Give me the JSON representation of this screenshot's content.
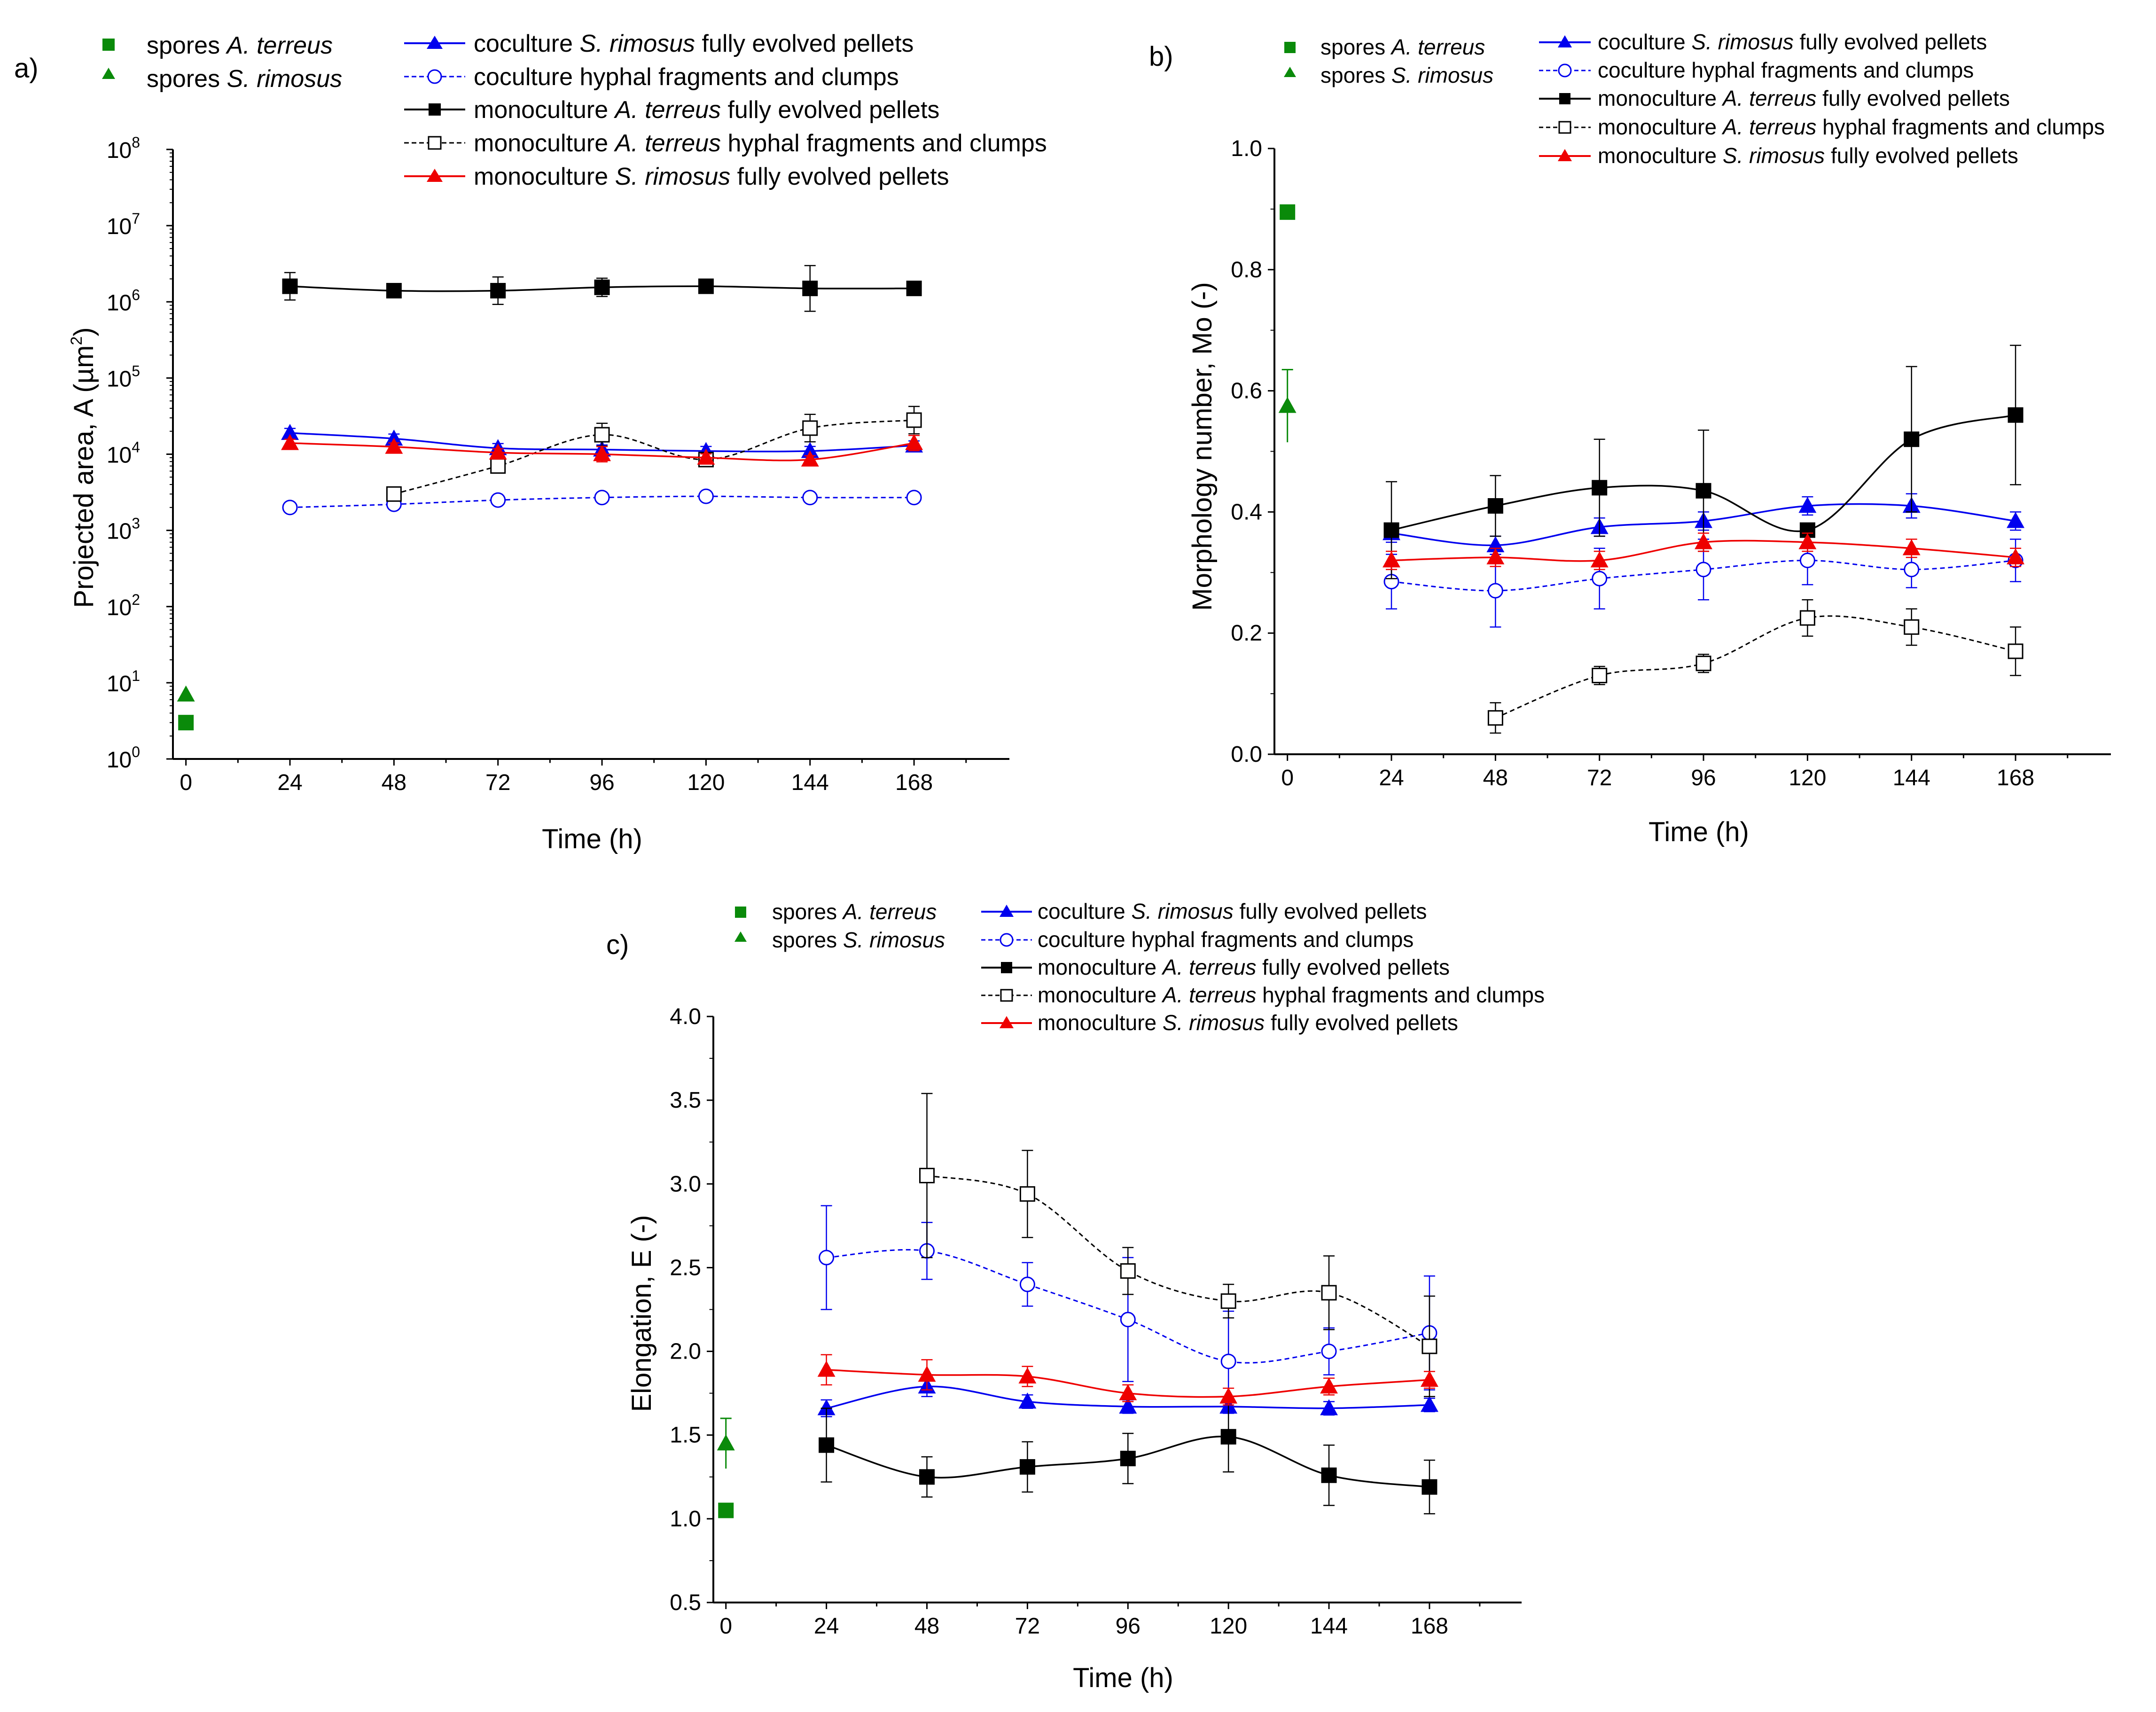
{
  "colors": {
    "black": "#000000",
    "blue": "#0000ee",
    "red": "#ee0000",
    "green": "#0a8a0a"
  },
  "legend": {
    "spores_a": {
      "pre": "spores ",
      "sp": "A. terreus",
      "post": ""
    },
    "spores_s": {
      "pre": "spores ",
      "sp": "S. rimosus",
      "post": ""
    },
    "co_s": {
      "pre": "coculture ",
      "sp": "S. rimosus",
      "post": " fully evolved pellets"
    },
    "co_h": {
      "pre": "coculture hyphal fragments and clumps",
      "sp": "",
      "post": ""
    },
    "mono_a": {
      "pre": "monoculture ",
      "sp": "A. terreus",
      "post": " fully evolved pellets"
    },
    "mono_ah": {
      "pre": "monoculture ",
      "sp": "A. terreus",
      "post": " hyphal fragments and clumps"
    },
    "mono_s": {
      "pre": "monoculture ",
      "sp": "S. rimosus",
      "post": " fully evolved pellets"
    }
  },
  "chart_data": [
    {
      "panel_label": "a)",
      "type": "scatter-line",
      "yscale": "log",
      "xlabel": "Time (h)",
      "ylabel": "Projected area, A (µm²)",
      "ylabel_main": "Projected area, A (µm",
      "ylabel_sup": "2",
      "ylabel_end": ")",
      "xlim": [
        -3,
        190
      ],
      "ylim_exp": [
        0,
        8
      ],
      "xticks": [
        0,
        24,
        48,
        72,
        96,
        120,
        144,
        168
      ],
      "yticks_exp": [
        0,
        1,
        2,
        3,
        4,
        5,
        6,
        7,
        8
      ],
      "x": [
        24,
        48,
        72,
        96,
        120,
        144,
        168
      ],
      "spores": {
        "a_terreus": 3,
        "s_rimosus": 7
      },
      "series": [
        {
          "key": "co_s",
          "values": [
            19000,
            16000,
            12000,
            11500,
            11000,
            11000,
            13000
          ],
          "err": [
            0.06,
            0.06,
            0.06,
            0.06,
            0.06,
            0.06,
            0.06
          ]
        },
        {
          "key": "co_h",
          "values": [
            2000,
            2200,
            2500,
            2700,
            2800,
            2700,
            2700
          ],
          "err": [
            0.03,
            0.03,
            0.03,
            0.03,
            0.03,
            0.03,
            0.03
          ]
        },
        {
          "key": "mono_a",
          "values": [
            1600000,
            1400000,
            1400000,
            1550000,
            1600000,
            1500000,
            1500000
          ],
          "err": [
            0.18,
            0.06,
            0.18,
            0.12,
            0.06,
            0.3,
            0.03
          ]
        },
        {
          "key": "mono_ah",
          "values": [
            null,
            3000,
            7000,
            18000,
            8500,
            22000,
            28000
          ],
          "err": [
            0,
            0.06,
            0.08,
            0.15,
            0.08,
            0.18,
            0.18
          ]
        },
        {
          "key": "mono_s",
          "values": [
            14000,
            12500,
            10500,
            10000,
            9000,
            8500,
            14000
          ],
          "err": [
            0.05,
            0.05,
            0.05,
            0.1,
            0.05,
            0.05,
            0.1
          ]
        }
      ]
    },
    {
      "panel_label": "b)",
      "type": "scatter-line",
      "yscale": "linear",
      "xlabel": "Time (h)",
      "ylabel": "Morphology number, Mo (-)",
      "xlim": [
        -3,
        190
      ],
      "ylim": [
        0,
        1.0
      ],
      "xticks": [
        0,
        24,
        48,
        72,
        96,
        120,
        144,
        168
      ],
      "yticks": [
        "0.0",
        "0.2",
        "0.4",
        "0.6",
        "0.8",
        "1.0"
      ],
      "x": [
        24,
        48,
        72,
        96,
        120,
        144,
        168
      ],
      "spores": {
        "a_terreus": 0.895,
        "a_terreus_err": 0,
        "s_rimosus": 0.575,
        "s_rimosus_err": 0.06
      },
      "series": [
        {
          "key": "co_s",
          "values": [
            0.365,
            0.345,
            0.375,
            0.385,
            0.41,
            0.41,
            0.385
          ],
          "err": [
            0.015,
            0.015,
            0.015,
            0.015,
            0.015,
            0.02,
            0.015
          ]
        },
        {
          "key": "co_h",
          "values": [
            0.285,
            0.27,
            0.29,
            0.305,
            0.32,
            0.305,
            0.32
          ],
          "err": [
            0.045,
            0.06,
            0.05,
            0.05,
            0.04,
            0.03,
            0.035
          ]
        },
        {
          "key": "mono_a",
          "values": [
            0.37,
            0.41,
            0.44,
            0.435,
            0.37,
            0.52,
            0.56
          ],
          "err": [
            0.08,
            0.05,
            0.08,
            0.1,
            0.0,
            0.12,
            0.115
          ]
        },
        {
          "key": "mono_ah",
          "values": [
            null,
            0.06,
            0.13,
            0.15,
            0.225,
            0.21,
            0.17
          ],
          "err": [
            0,
            0.025,
            0.015,
            0.015,
            0.03,
            0.03,
            0.04
          ]
        },
        {
          "key": "mono_s",
          "values": [
            0.32,
            0.325,
            0.32,
            0.35,
            0.35,
            0.34,
            0.325
          ],
          "err": [
            0.015,
            0.015,
            0.015,
            0.015,
            0.015,
            0.015,
            0.015
          ]
        }
      ]
    },
    {
      "panel_label": "c)",
      "type": "scatter-line",
      "yscale": "linear",
      "xlabel": "Time (h)",
      "ylabel": "Elongation, E (-)",
      "xlim": [
        -3,
        190
      ],
      "ylim": [
        0.5,
        4.0
      ],
      "xticks": [
        0,
        24,
        48,
        72,
        96,
        120,
        144,
        168
      ],
      "yticks": [
        "0.5",
        "1.0",
        "1.5",
        "2.0",
        "2.5",
        "3.0",
        "3.5",
        "4.0"
      ],
      "x": [
        24,
        48,
        72,
        96,
        120,
        144,
        168
      ],
      "spores": {
        "a_terreus": 1.05,
        "a_terreus_err": 0,
        "s_rimosus": 1.45,
        "s_rimosus_err": 0.15
      },
      "series": [
        {
          "key": "co_s",
          "values": [
            1.66,
            1.79,
            1.7,
            1.67,
            1.67,
            1.66,
            1.68
          ],
          "err": [
            0.05,
            0.06,
            0.04,
            0.04,
            0.04,
            0.04,
            0.04
          ]
        },
        {
          "key": "co_h",
          "values": [
            2.56,
            2.6,
            2.4,
            2.19,
            1.94,
            2.0,
            2.11
          ],
          "err": [
            0.31,
            0.17,
            0.13,
            0.37,
            0.3,
            0.14,
            0.34
          ]
        },
        {
          "key": "mono_a",
          "values": [
            1.44,
            1.25,
            1.31,
            1.36,
            1.49,
            1.26,
            1.19
          ],
          "err": [
            0.22,
            0.12,
            0.15,
            0.15,
            0.21,
            0.18,
            0.16
          ]
        },
        {
          "key": "mono_ah",
          "values": [
            null,
            3.05,
            2.94,
            2.48,
            2.3,
            2.35,
            2.03
          ],
          "err": [
            0,
            0.49,
            0.26,
            0.14,
            0.1,
            0.22,
            0.3
          ]
        },
        {
          "key": "mono_s",
          "values": [
            1.89,
            1.86,
            1.85,
            1.75,
            1.73,
            1.79,
            1.83
          ],
          "err": [
            0.09,
            0.09,
            0.06,
            0.05,
            0.05,
            0.05,
            0.05
          ]
        }
      ]
    }
  ]
}
